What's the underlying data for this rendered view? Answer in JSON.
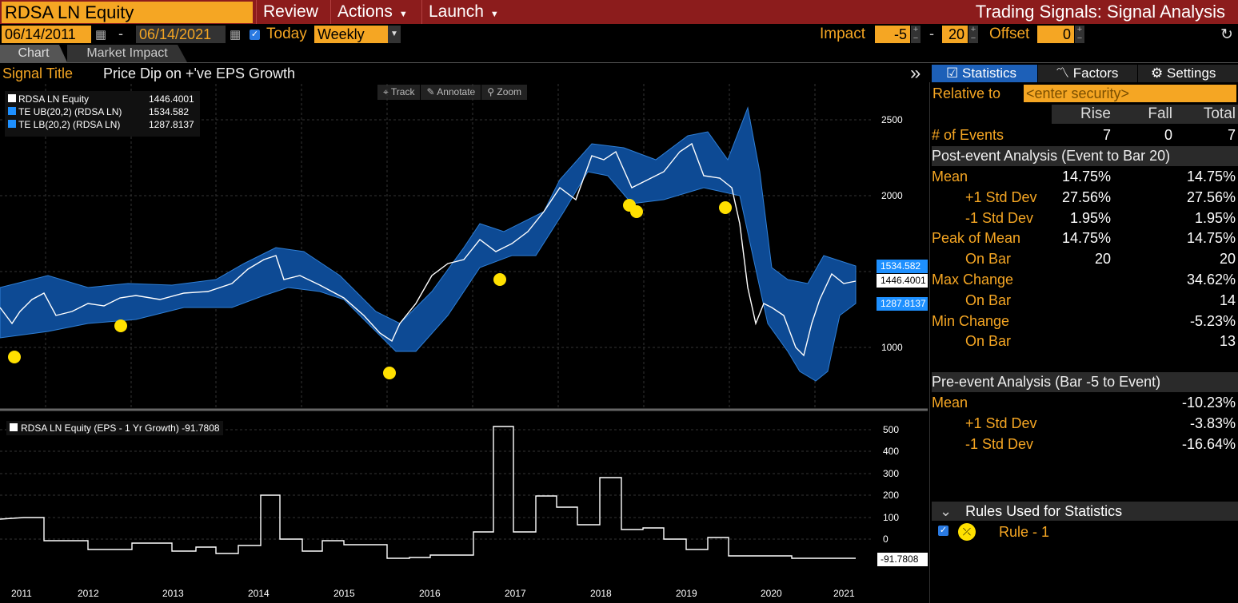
{
  "header": {
    "ticker": "RDSA LN Equity",
    "menus": [
      "Review",
      "Actions",
      "Launch"
    ],
    "app_title": "Trading Signals: Signal Analysis"
  },
  "controls": {
    "start_date": "06/14/2011",
    "dash": "-",
    "end_date": "06/14/2021",
    "today_label": "Today",
    "period": "Weekly",
    "impact_label": "Impact",
    "impact_from": "-5",
    "impact_to": "20",
    "offset_label": "Offset",
    "offset": "0"
  },
  "tabs": [
    "Chart",
    "Market Impact"
  ],
  "signal": {
    "label": "Signal Title",
    "value": "Price Dip on +'ve EPS Growth"
  },
  "chart_tools": [
    "Track",
    "Annotate",
    "Zoom"
  ],
  "legend": [
    {
      "name": "RDSA LN Equity",
      "value": "1446.4001",
      "color": "#ffffff"
    },
    {
      "name": "TE UB(20,2) (RDSA LN)",
      "value": "1534.582",
      "color": "#1e90ff"
    },
    {
      "name": "TE LB(20,2) (RDSA LN)",
      "value": "1287.8137",
      "color": "#1e90ff"
    }
  ],
  "price_axis": {
    "ticks": [
      "2500",
      "2000",
      "1000"
    ]
  },
  "price_tags": {
    "ub": "1534.582",
    "last": "1446.4001",
    "lb": "1287.8137"
  },
  "lower_legend": "RDSA LN Equity (EPS - 1 Yr Growth) -91.7808",
  "lower_axis": {
    "ticks": [
      "500",
      "400",
      "300",
      "200",
      "100",
      "0"
    ],
    "last": "-91.7808"
  },
  "x_axis": [
    "2011",
    "2012",
    "2013",
    "2014",
    "2015",
    "2016",
    "2017",
    "2018",
    "2019",
    "2020",
    "2021"
  ],
  "right_panel": {
    "tabs": [
      "Statistics",
      "Factors",
      "Settings"
    ],
    "relative_label": "Relative to",
    "relative_placeholder": "<enter security>",
    "col_headers": [
      "Rise",
      "Fall",
      "Total"
    ],
    "events": {
      "label": "# of Events",
      "rise": "7",
      "fall": "0",
      "total": "7"
    },
    "post_title": "Post-event Analysis (Event to Bar 20)",
    "post_rows": [
      {
        "label": "Mean",
        "rise": "14.75%",
        "total": "14.75%",
        "indent": false
      },
      {
        "label": "+1 Std Dev",
        "rise": "27.56%",
        "total": "27.56%",
        "indent": true
      },
      {
        "label": "-1 Std Dev",
        "rise": "1.95%",
        "total": "1.95%",
        "indent": true
      },
      {
        "label": "Peak of Mean",
        "rise": "14.75%",
        "total": "14.75%",
        "indent": false
      },
      {
        "label": "On Bar",
        "rise": "20",
        "total": "20",
        "indent": true
      },
      {
        "label": "Max Change",
        "rise": "",
        "total": "34.62%",
        "indent": false
      },
      {
        "label": "On Bar",
        "rise": "",
        "total": "14",
        "indent": true
      },
      {
        "label": "Min Change",
        "rise": "",
        "total": "-5.23%",
        "indent": false
      },
      {
        "label": "On Bar",
        "rise": "",
        "total": "13",
        "indent": true
      }
    ],
    "pre_title": "Pre-event Analysis (Bar -5 to Event)",
    "pre_rows": [
      {
        "label": "Mean",
        "total": "-10.23%",
        "indent": false
      },
      {
        "label": "+1 Std Dev",
        "total": "-3.83%",
        "indent": true
      },
      {
        "label": "-1 Std Dev",
        "total": "-16.64%",
        "indent": true
      }
    ],
    "rules_title": "Rules Used for Statistics",
    "rule": "Rule - 1"
  }
}
